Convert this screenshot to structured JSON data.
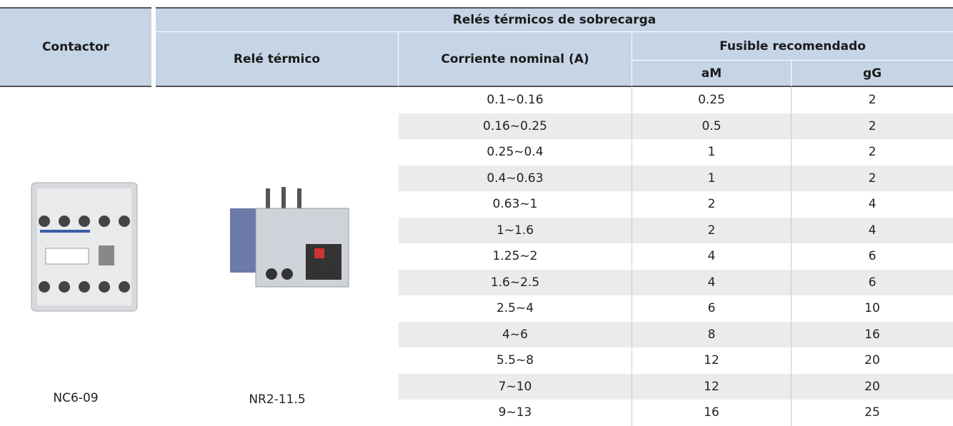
{
  "header": {
    "contactor": "Contactor",
    "group": "Relés térmicos de sobrecarga",
    "relay": "Relé térmico",
    "current": "Corriente nominal (A)",
    "fuse": "Fusible recomendado",
    "am": "aM",
    "gg": "gG"
  },
  "contactor_model": "NC6-09",
  "relay_model": "NR2-11.5",
  "table": {
    "rows": [
      [
        "0.1~0.16",
        0.25,
        2
      ],
      [
        "0.16~0.25",
        0.5,
        2
      ],
      [
        "0.25~0.4",
        1,
        2
      ],
      [
        "0.4~0.63",
        1,
        2
      ],
      [
        "0.63~1",
        2,
        4
      ],
      [
        "1~1.6",
        2,
        4
      ],
      [
        "1.25~2",
        4,
        6
      ],
      [
        "1.6~2.5",
        4,
        6
      ],
      [
        "2.5~4",
        6,
        10
      ],
      [
        "4~6",
        8,
        16
      ],
      [
        "5.5~8",
        12,
        20
      ],
      [
        "7~10",
        12,
        20
      ],
      [
        "9~13",
        16,
        25
      ]
    ]
  }
}
